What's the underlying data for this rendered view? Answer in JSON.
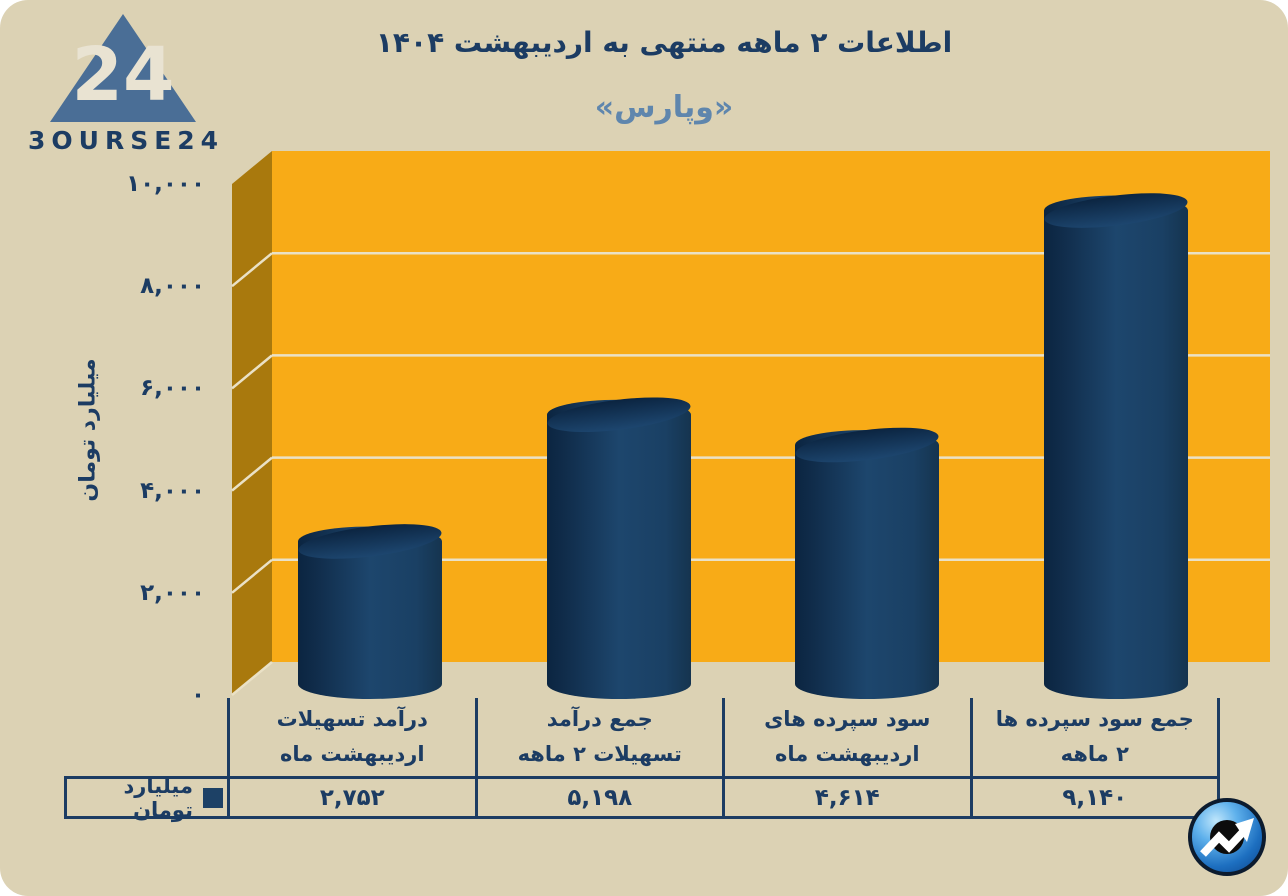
{
  "theme": {
    "card_bg": "#dcd2b4",
    "navy": "#1c3c63",
    "steel": "#5f86ad",
    "plot_orange": "#f8ab17",
    "wall_brown": "#a9790d",
    "gridline": "#eae1c6",
    "bar_color": "#16395d",
    "legend_marker": "#1d4166"
  },
  "brand": {
    "logo_text": "3OURSE24",
    "logo_number": "24"
  },
  "header": {
    "title": "اطلاعات ۲ ماهه منتهی به اردیبهشت ۱۴۰۴",
    "subtitle": "«وپارس»"
  },
  "chart_data": {
    "type": "bar",
    "style": "3d-cylinder",
    "direction": "rtl",
    "title": "اطلاعات ۲ ماهه منتهی به اردیبهشت ۱۴۰۴",
    "subtitle": "«وپارس»",
    "categories": [
      "درآمد تسهیلات اردیبهشت ماه",
      "جمع درآمد تسهیلات ۲ ماهه",
      "سود سپرده های اردیبهشت ماه",
      "جمع سود سپرده ها ۲ ماهه"
    ],
    "categories_lines": [
      [
        "درآمد تسهیلات",
        "اردیبهشت ماه"
      ],
      [
        "جمع درآمد",
        "تسهیلات ۲ ماهه"
      ],
      [
        "سود سپرده های",
        "اردیبهشت ماه"
      ],
      [
        "جمع سود سپرده ها",
        "۲ ماهه"
      ]
    ],
    "values": [
      2752,
      5198,
      4614,
      9140
    ],
    "values_display": [
      "۲,۷۵۲",
      "۵,۱۹۸",
      "۴,۶۱۴",
      "۹,۱۴۰"
    ],
    "xlabel": "",
    "ylabel": "میلیارد تومان",
    "ylim": [
      0,
      10000
    ],
    "ytick_values": [
      10000,
      8000,
      6000,
      4000,
      2000,
      0
    ],
    "ytick_labels": [
      "۱۰,۰۰۰",
      "۸,۰۰۰",
      "۶,۰۰۰",
      "۴,۰۰۰",
      "۲,۰۰۰",
      "۰"
    ],
    "gridline_values": [
      2000,
      4000,
      6000,
      8000
    ],
    "grid": true,
    "legend": {
      "label": "میلیارد تومان",
      "position": "bottom-left"
    }
  }
}
